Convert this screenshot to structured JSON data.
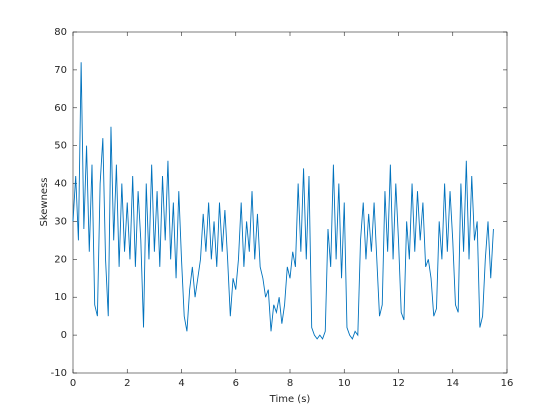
{
  "chart_data": {
    "type": "line",
    "xlabel": "Time (s)",
    "ylabel": "Skewness",
    "xlim": [
      0,
      16
    ],
    "xticks": [
      0,
      2,
      4,
      6,
      8,
      10,
      12,
      14,
      16
    ],
    "ylim": [
      -10,
      80
    ],
    "yticks": [
      -10,
      0,
      10,
      20,
      30,
      40,
      50,
      60,
      70,
      80
    ],
    "grid": false,
    "series": [
      {
        "color": "#0072bd",
        "x": [
          0,
          0.1,
          0.2,
          0.3,
          0.4,
          0.5,
          0.6,
          0.7,
          0.8,
          0.9,
          1,
          1.1,
          1.2,
          1.3,
          1.4,
          1.5,
          1.6,
          1.7,
          1.8,
          1.9,
          2,
          2.1,
          2.2,
          2.3,
          2.4,
          2.5,
          2.6,
          2.7,
          2.8,
          2.9,
          3,
          3.1,
          3.2,
          3.3,
          3.4,
          3.5,
          3.6,
          3.7,
          3.8,
          3.9,
          4,
          4.1,
          4.2,
          4.3,
          4.4,
          4.5,
          4.6,
          4.7,
          4.8,
          4.9,
          5,
          5.1,
          5.2,
          5.3,
          5.4,
          5.5,
          5.6,
          5.7,
          5.8,
          5.9,
          6,
          6.1,
          6.2,
          6.3,
          6.4,
          6.5,
          6.6,
          6.7,
          6.8,
          6.9,
          7,
          7.1,
          7.2,
          7.3,
          7.4,
          7.5,
          7.6,
          7.7,
          7.8,
          7.9,
          8,
          8.1,
          8.2,
          8.3,
          8.4,
          8.5,
          8.6,
          8.7,
          8.8,
          8.9,
          9,
          9.1,
          9.2,
          9.3,
          9.4,
          9.5,
          9.6,
          9.7,
          9.8,
          9.9,
          10,
          10.1,
          10.2,
          10.3,
          10.4,
          10.5,
          10.6,
          10.7,
          10.8,
          10.9,
          11,
          11.1,
          11.2,
          11.3,
          11.4,
          11.5,
          11.6,
          11.7,
          11.8,
          11.9,
          12,
          12.1,
          12.2,
          12.3,
          12.4,
          12.5,
          12.6,
          12.7,
          12.8,
          12.9,
          13,
          13.1,
          13.2,
          13.3,
          13.4,
          13.5,
          13.6,
          13.7,
          13.8,
          13.9,
          14,
          14.1,
          14.2,
          14.3,
          14.4,
          14.5,
          14.6,
          14.7,
          14.8,
          14.9,
          15,
          15.1,
          15.2,
          15.3,
          15.4,
          15.5
        ],
        "values": [
          30,
          42,
          25,
          72,
          28,
          50,
          22,
          45,
          8,
          5,
          40,
          52,
          20,
          5,
          55,
          25,
          45,
          18,
          40,
          22,
          35,
          20,
          42,
          18,
          38,
          25,
          2,
          40,
          20,
          45,
          22,
          38,
          18,
          42,
          25,
          46,
          20,
          35,
          15,
          38,
          20,
          5,
          1,
          12,
          18,
          10,
          15,
          20,
          32,
          22,
          35,
          20,
          30,
          18,
          35,
          22,
          33,
          20,
          5,
          15,
          12,
          20,
          35,
          18,
          30,
          22,
          38,
          20,
          32,
          18,
          15,
          10,
          12,
          1,
          8,
          6,
          10,
          3,
          8,
          18,
          15,
          22,
          18,
          40,
          22,
          44,
          20,
          42,
          2,
          0,
          -1,
          0,
          -1,
          1,
          28,
          18,
          45,
          20,
          40,
          15,
          35,
          2,
          0,
          -1,
          1,
          0,
          25,
          35,
          20,
          32,
          22,
          35,
          20,
          5,
          8,
          38,
          22,
          45,
          20,
          40,
          25,
          6,
          4,
          30,
          20,
          40,
          22,
          38,
          25,
          35,
          18,
          20,
          15,
          5,
          7,
          30,
          20,
          40,
          22,
          38,
          25,
          8,
          6,
          40,
          22,
          46,
          20,
          42,
          25,
          30,
          2,
          5,
          20,
          30,
          15,
          28
        ]
      }
    ]
  }
}
